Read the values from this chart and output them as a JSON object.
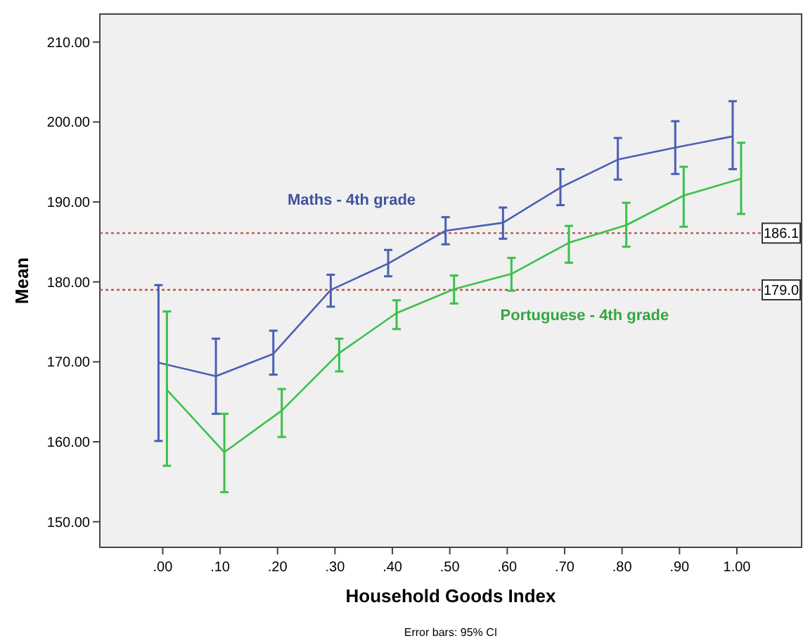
{
  "chart_data": {
    "type": "line",
    "xlabel": "Household Goods Index",
    "ylabel": "Mean",
    "categories": [
      ".00",
      ".10",
      ".20",
      ".30",
      ".40",
      ".50",
      ".60",
      ".70",
      ".80",
      ".90",
      "1.00"
    ],
    "ylim": [
      146.8,
      213.5
    ],
    "yticks": [
      {
        "value": 150,
        "label": "150.00"
      },
      {
        "value": 160,
        "label": "160.00"
      },
      {
        "value": 170,
        "label": "170.00"
      },
      {
        "value": 180,
        "label": "180.00"
      },
      {
        "value": 190,
        "label": "190.00"
      },
      {
        "value": 200,
        "label": "200.00"
      },
      {
        "value": 210,
        "label": "210.00"
      }
    ],
    "grid": false,
    "marker": "none",
    "line_style": "solid",
    "series": [
      {
        "name": "Maths - 4th grade",
        "color": "#4a5fb5",
        "values": [
          169.9,
          168.2,
          171.0,
          179.0,
          182.3,
          186.4,
          187.4,
          191.8,
          195.3,
          196.8,
          198.2
        ],
        "errors": [
          [
            160.1,
            179.6
          ],
          [
            163.5,
            172.9
          ],
          [
            168.4,
            173.9
          ],
          [
            176.9,
            180.9
          ],
          [
            180.7,
            184.0
          ],
          [
            184.7,
            188.1
          ],
          [
            185.4,
            189.3
          ],
          [
            189.6,
            194.1
          ],
          [
            192.8,
            198.0
          ],
          [
            193.5,
            200.1
          ],
          [
            194.1,
            202.6
          ]
        ]
      },
      {
        "name": "Portuguese - 4th grade",
        "color": "#3cc04a",
        "values": [
          166.5,
          158.7,
          163.9,
          171.1,
          176.1,
          179.1,
          181.0,
          184.9,
          187.1,
          190.8,
          192.9
        ],
        "errors": [
          [
            157.0,
            176.3
          ],
          [
            153.7,
            163.5
          ],
          [
            160.6,
            166.6
          ],
          [
            168.8,
            172.9
          ],
          [
            174.1,
            177.7
          ],
          [
            177.3,
            180.8
          ],
          [
            178.9,
            183.0
          ],
          [
            182.4,
            187.0
          ],
          [
            184.4,
            189.9
          ],
          [
            186.9,
            194.4
          ],
          [
            188.5,
            197.4
          ]
        ]
      }
    ],
    "ref_lines": [
      {
        "axis": "y",
        "value": 186.1,
        "label": "186.1",
        "color": "#c0504d",
        "line_style": "dotted"
      },
      {
        "axis": "y",
        "value": 179.0,
        "label": "179.0",
        "color": "#c0504d",
        "line_style": "dotted"
      }
    ],
    "annotations": [
      "Error bars: 95% CI"
    ]
  }
}
